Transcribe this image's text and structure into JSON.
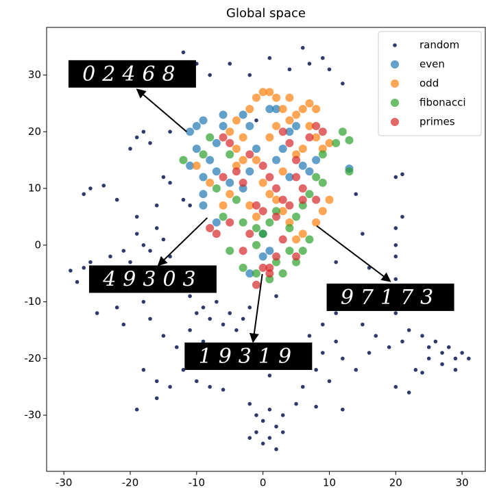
{
  "chart_data": {
    "type": "scatter",
    "title": "Global space",
    "xlim": [
      -32.6,
      33.5
    ],
    "ylim": [
      -39.9,
      38.4
    ],
    "xticks": [
      -30,
      -20,
      -10,
      0,
      10,
      20,
      30
    ],
    "yticks": [
      -30,
      -20,
      -10,
      0,
      10,
      20,
      30
    ],
    "legend": "upper right",
    "series": [
      {
        "name": "random",
        "color": "#2e3a6b",
        "x": [
          -29,
          -28,
          -27,
          -26,
          -25,
          -24,
          -23,
          -22,
          -21,
          -20,
          -19,
          -18,
          -17,
          -16,
          -15,
          -14,
          -13,
          -12,
          -11,
          -10,
          -9,
          -8,
          -7,
          -6,
          -5,
          -4,
          -3,
          -2,
          -26,
          -27,
          -24,
          -22,
          -19,
          -16,
          -15,
          -14,
          -12,
          -11,
          -20,
          -18,
          -22,
          -25,
          -21,
          -17,
          -15,
          -13,
          -11,
          -9,
          -7,
          -5,
          -18,
          -16,
          -14,
          -12,
          -19,
          -16,
          -10,
          -8,
          -6,
          -20,
          -19,
          -18,
          -17,
          -14,
          -8,
          -5,
          -2,
          1,
          4,
          6,
          7,
          9,
          10,
          12,
          -12,
          -10,
          -1,
          2,
          -3,
          -1,
          1,
          3,
          5,
          7,
          9,
          11,
          13,
          15,
          17,
          19,
          12,
          14,
          16,
          10,
          8,
          6,
          -2,
          -1,
          0,
          1,
          2,
          3,
          -1,
          0,
          1,
          2,
          -2,
          3,
          22,
          24,
          25,
          26,
          27,
          28,
          29,
          30,
          31,
          27,
          25,
          23,
          24,
          29,
          21,
          20,
          22,
          20,
          21,
          21,
          20,
          20,
          20,
          20,
          20,
          16,
          15,
          11,
          13,
          14,
          9,
          11,
          5,
          8,
          12
        ],
        "y": [
          -4.5,
          -6.5,
          -4,
          -3,
          -7,
          -5,
          -2,
          -4,
          -1,
          -3,
          2,
          0,
          -1,
          3,
          1,
          -2,
          -4,
          -6,
          -9,
          -12,
          -11,
          -13,
          -10,
          -14,
          -12,
          -15,
          -13,
          -11,
          10,
          9,
          10.5,
          8,
          5,
          7,
          12,
          11,
          8,
          7,
          -8,
          -10,
          -11,
          -12,
          -14,
          -13,
          -16,
          -18,
          -15,
          -17,
          -19,
          -21,
          -22,
          -24,
          -25,
          -22,
          -29,
          -27,
          -24,
          -25,
          -25.5,
          17,
          19,
          20,
          18,
          20,
          30,
          32,
          30,
          33,
          31,
          34.8,
          32,
          33,
          31,
          28.5,
          34,
          32,
          22,
          -9,
          -18,
          -21,
          -23,
          -20,
          -18,
          -16,
          -14,
          -12,
          -10,
          -14,
          -16,
          -18,
          -20,
          -22,
          -19,
          -24,
          -22,
          -25,
          -28,
          -30,
          -31,
          -29,
          -32,
          -30,
          -33,
          -35,
          -34,
          -36,
          -34,
          -33,
          -15,
          -16,
          -18,
          -17,
          -19,
          -18,
          -20,
          -19,
          -20,
          -21,
          -20,
          -22,
          -22.5,
          -22,
          -17,
          -25,
          -26,
          12,
          12.5,
          5,
          3,
          0,
          -2,
          -6,
          -12,
          -4,
          2,
          -3,
          -8,
          9,
          -19,
          -17,
          -28,
          -28.5,
          -29
        ]
      },
      {
        "name": "even",
        "color": "#1f77b4",
        "x": [
          -11,
          -10,
          -9,
          -10,
          -11,
          -9,
          -8,
          -7,
          -6,
          -6,
          -7,
          -9,
          -9,
          -7,
          -3,
          -2,
          1,
          2,
          3,
          2,
          4,
          5,
          6,
          7,
          8,
          4,
          -1,
          -2,
          -3,
          0,
          0,
          -2,
          1,
          13,
          -5
        ],
        "y": [
          20,
          21,
          22,
          17,
          14,
          12,
          15,
          18,
          21,
          23,
          13,
          9,
          7,
          4,
          23,
          21,
          24,
          24,
          17,
          15,
          20,
          21,
          14,
          13,
          15,
          12,
          17,
          13,
          10,
          2,
          -2,
          -5,
          -1,
          13.5,
          11
        ]
      },
      {
        "name": "odd",
        "color": "#ff7f0e",
        "x": [
          -5,
          -4,
          -3,
          -2,
          -1,
          0,
          1,
          2,
          3,
          4,
          5,
          6,
          7,
          8,
          7,
          8,
          9,
          10,
          -4,
          -3,
          -1,
          1,
          2,
          3,
          5,
          6,
          -10,
          -8,
          -5,
          -4,
          0,
          1,
          2,
          3,
          4,
          -2,
          -1,
          5,
          6,
          8,
          10,
          9,
          4,
          -6
        ],
        "y": [
          20,
          22,
          19,
          24,
          26,
          27,
          27,
          26,
          24,
          26,
          23,
          24,
          25,
          24,
          21,
          19,
          17,
          18,
          17,
          15,
          15,
          19,
          21,
          13,
          16,
          17,
          14,
          11,
          9,
          14,
          11,
          9,
          8,
          6,
          4,
          7,
          5,
          1,
          2,
          4,
          8,
          6,
          22,
          7
        ]
      },
      {
        "name": "fibonacci",
        "color": "#2ca02c",
        "x": [
          -12,
          -9,
          -8,
          -7,
          -5,
          -6,
          -4,
          -3,
          -1,
          0,
          1,
          2,
          4,
          5,
          6,
          7,
          8,
          9,
          11,
          12,
          13,
          13,
          6,
          5,
          3,
          1,
          -1,
          -3,
          -5,
          -1,
          2,
          7,
          4,
          9
        ],
        "y": [
          15,
          16,
          19,
          10,
          16,
          5,
          8,
          4,
          3,
          2,
          4,
          6,
          3,
          5,
          7,
          9,
          12,
          16,
          18,
          20,
          18.5,
          13,
          -1,
          -3,
          -5,
          -6,
          -5,
          -4,
          -1,
          0,
          -3,
          1,
          -1,
          11
        ]
      },
      {
        "name": "primes",
        "color": "#d62728",
        "x": [
          -6,
          -5,
          -4,
          -3,
          -2,
          0,
          1,
          2,
          3,
          4,
          5,
          6,
          7,
          8,
          9,
          6,
          5,
          3,
          2,
          -1,
          -3,
          -5,
          -7,
          -8,
          -6,
          0,
          1,
          2,
          -2,
          0,
          4,
          8,
          5,
          3,
          -1,
          1
        ],
        "y": [
          19,
          18,
          13,
          11,
          16,
          14,
          12,
          10,
          20,
          18,
          15,
          10,
          19,
          21,
          20,
          8,
          12,
          8,
          5,
          7,
          -1,
          4,
          2,
          3,
          12,
          -4,
          -4,
          -2,
          2,
          6,
          7,
          8,
          -2,
          1,
          -7,
          -5
        ]
      }
    ],
    "annotations": [
      {
        "text": "02468",
        "from": [
          -11.5,
          20
        ],
        "to": [
          -19,
          27.5
        ],
        "text_at": [
          -19.7,
          30.2
        ]
      },
      {
        "text": "49303",
        "from": [
          -8.4,
          4.8
        ],
        "to": [
          -15.8,
          -3.6
        ],
        "text_at": [
          -16.6,
          -6
        ]
      },
      {
        "text": "97173",
        "from": [
          8.1,
          3.4
        ],
        "to": [
          19.2,
          -6.4
        ],
        "text_at": [
          19.2,
          -9.2
        ]
      },
      {
        "text": "19319",
        "from": [
          -0.1,
          -5.1
        ],
        "to": [
          -1.5,
          -17.1
        ],
        "text_at": [
          -2.2,
          -19.6
        ]
      }
    ]
  }
}
